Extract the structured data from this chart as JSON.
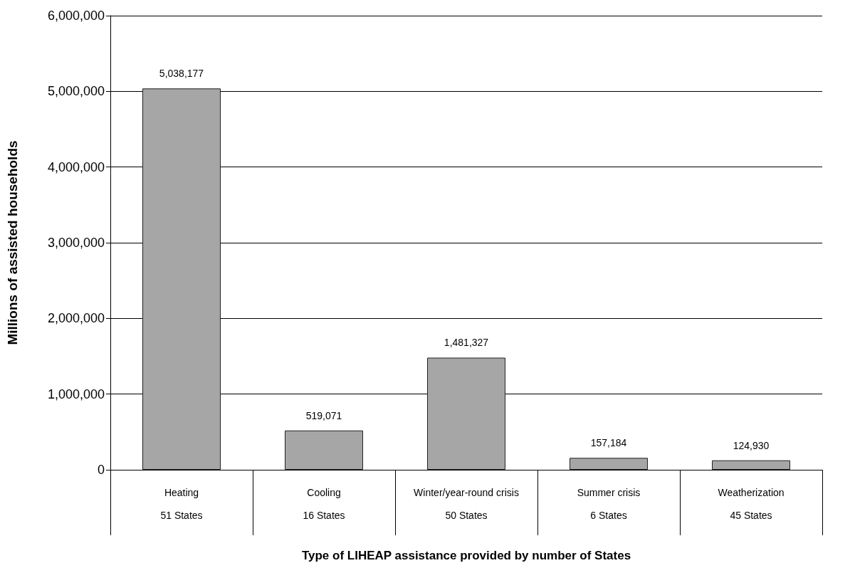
{
  "chart_data": {
    "type": "bar",
    "xlabel": "Type of LIHEAP assistance provided by number of States",
    "ylabel": "Millions of assisted households",
    "categories": [
      "Heating\n\n51 States",
      "Cooling\n\n16 States",
      "Winter/year-round crisis\n\n50 States",
      "Summer crisis\n\n6 States",
      "Weatherization\n\n45 States"
    ],
    "values": [
      5038177,
      519071,
      1481327,
      157184,
      124930
    ],
    "value_labels": [
      "5,038,177",
      "519,071",
      "1,481,327",
      "157,184",
      "124,930"
    ],
    "color": "#a6a6a6",
    "ylim": [
      0,
      6000000
    ],
    "yticks": [
      0,
      {
        "value": 1000000,
        "label": "1,000,000"
      },
      {
        "value": 2000000,
        "label": "2,000,000"
      },
      {
        "value": 3000000,
        "label": "3,000,000"
      },
      {
        "value": 4000000,
        "label": "4,000,000"
      },
      {
        "value": 5000000,
        "label": "5,000,000"
      },
      {
        "value": 6000000,
        "label": "6,000,000"
      }
    ],
    "grid": "y"
  }
}
